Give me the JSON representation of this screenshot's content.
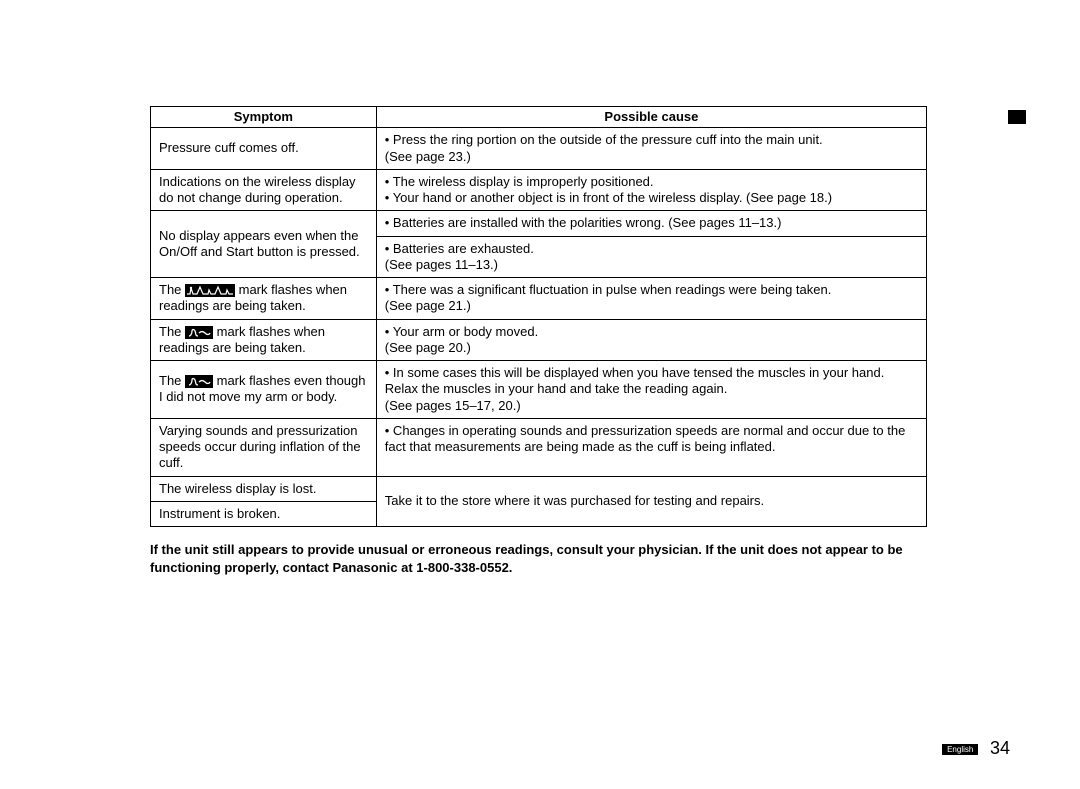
{
  "table": {
    "headers": {
      "symptom": "Symptom",
      "cause": "Possible cause"
    },
    "rows": [
      {
        "symptom": "Pressure cuff comes off.",
        "cause": "• Press the ring portion on the outside of the pressure cuff into the main unit.\n(See page 23.)"
      },
      {
        "symptom": "Indications on the wireless display do not change during operation.",
        "cause": "• The wireless display is improperly positioned.\n• Your hand or another object is in front of the wireless display. (See page 18.)"
      },
      {
        "symptom": "No display appears even when the On/Off and Start button is pressed.",
        "cause_a": "• Batteries are installed with the polarities wrong. (See pages 11–13.)",
        "cause_b": "• Batteries are exhausted.\n(See pages 11–13.)"
      },
      {
        "symptom_pre": "The ",
        "symptom_post": " mark flashes when readings are being taken.",
        "icon": "pulse",
        "cause": "• There was a significant fluctuation in pulse when readings were being taken.\n(See page 21.)"
      },
      {
        "symptom_pre": "The ",
        "symptom_post": " mark flashes when readings are being taken.",
        "icon": "body",
        "cause": "• Your arm or body moved.\n(See page 20.)"
      },
      {
        "symptom_pre": "The ",
        "symptom_post": " mark flashes even though I did not move my arm or body.",
        "icon": "body",
        "cause": "• In some cases this will be displayed when you have tensed the muscles in your hand. Relax the muscles in your hand and take the reading again.\n(See pages 15–17, 20.)"
      },
      {
        "symptom": "Varying sounds and pressurization speeds occur during inflation of the cuff.",
        "cause": "• Changes in operating sounds and pressurization speeds are normal and occur due to the fact that measurements are being made as the cuff is being inflated."
      },
      {
        "symptom_a": "The wireless display is lost.",
        "symptom_b": "Instrument is broken.",
        "cause": "Take it to the store where it was purchased for testing and repairs."
      }
    ]
  },
  "note": "If the unit still appears to provide unusual or erroneous readings, consult your physician. If the unit does not appear to be functioning properly, contact Panasonic at 1-800-338-0552.",
  "footer": {
    "language": "English",
    "page": "34"
  }
}
